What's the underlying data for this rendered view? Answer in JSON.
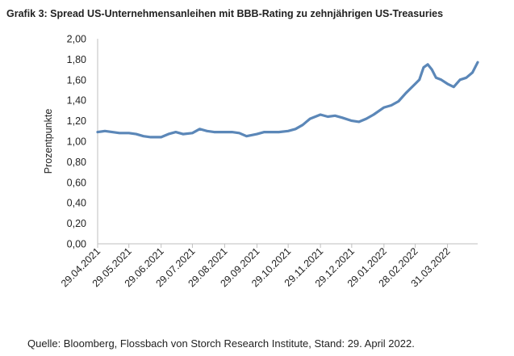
{
  "title": "Grafik 3: Spread US-Unternehmensanleihen mit BBB-Rating zu zehnjährigen US-Treasuries",
  "source": "Quelle: Bloomberg, Flossbach von Storch Research Institute, Stand: 29. April 2022.",
  "chart_data": {
    "type": "line",
    "title": "Grafik 3: Spread US-Unternehmensanleihen mit BBB-Rating zu zehnjährigen US-Treasuries",
    "xlabel": "",
    "ylabel": "Prozentpunkte",
    "ylim": [
      0,
      2
    ],
    "y_ticks": [
      "0,00",
      "0,20",
      "0,40",
      "0,60",
      "0,80",
      "1,00",
      "1,20",
      "1,40",
      "1,60",
      "1,80",
      "2,00"
    ],
    "y_tick_values": [
      0,
      0.2,
      0.4,
      0.6,
      0.8,
      1.0,
      1.2,
      1.4,
      1.6,
      1.8,
      2.0
    ],
    "x_ticks": [
      "29.04.2021",
      "29.05.2021",
      "29.06.2021",
      "29.07.2021",
      "29.08.2021",
      "29.09.2021",
      "29.10.2021",
      "29.11.2021",
      "29.12.2021",
      "29.01.2022",
      "28.02.2022",
      "31.03.2022"
    ],
    "x_range": [
      "29.04.2021",
      "29.04.2022"
    ],
    "grid": false,
    "line_color": "#5b87b8",
    "series": [
      {
        "name": "",
        "x": [
          "29.04.2021",
          "06.05.2021",
          "13.05.2021",
          "20.05.2021",
          "29.05.2021",
          "05.06.2021",
          "12.06.2021",
          "19.06.2021",
          "29.06.2021",
          "06.07.2021",
          "13.07.2021",
          "20.07.2021",
          "29.07.2021",
          "05.08.2021",
          "12.08.2021",
          "19.08.2021",
          "29.08.2021",
          "05.09.2021",
          "12.09.2021",
          "19.09.2021",
          "29.09.2021",
          "06.10.2021",
          "13.10.2021",
          "20.10.2021",
          "29.10.2021",
          "05.11.2021",
          "12.11.2021",
          "19.11.2021",
          "29.11.2021",
          "06.12.2021",
          "13.12.2021",
          "20.12.2021",
          "29.12.2021",
          "05.01.2022",
          "12.01.2022",
          "19.01.2022",
          "29.01.2022",
          "05.02.2022",
          "12.02.2022",
          "19.02.2022",
          "28.02.2022",
          "04.03.2022",
          "08.03.2022",
          "12.03.2022",
          "16.03.2022",
          "20.03.2022",
          "25.03.2022",
          "31.03.2022",
          "06.04.2022",
          "12.04.2022",
          "18.04.2022",
          "24.04.2022",
          "29.04.2022"
        ],
        "values": [
          1.09,
          1.1,
          1.09,
          1.08,
          1.08,
          1.07,
          1.05,
          1.04,
          1.04,
          1.07,
          1.09,
          1.07,
          1.08,
          1.12,
          1.1,
          1.09,
          1.09,
          1.09,
          1.08,
          1.05,
          1.07,
          1.09,
          1.09,
          1.09,
          1.1,
          1.12,
          1.16,
          1.22,
          1.26,
          1.24,
          1.25,
          1.23,
          1.2,
          1.19,
          1.22,
          1.26,
          1.33,
          1.35,
          1.39,
          1.47,
          1.56,
          1.6,
          1.72,
          1.75,
          1.7,
          1.62,
          1.6,
          1.56,
          1.53,
          1.6,
          1.62,
          1.67,
          1.77
        ]
      }
    ]
  }
}
